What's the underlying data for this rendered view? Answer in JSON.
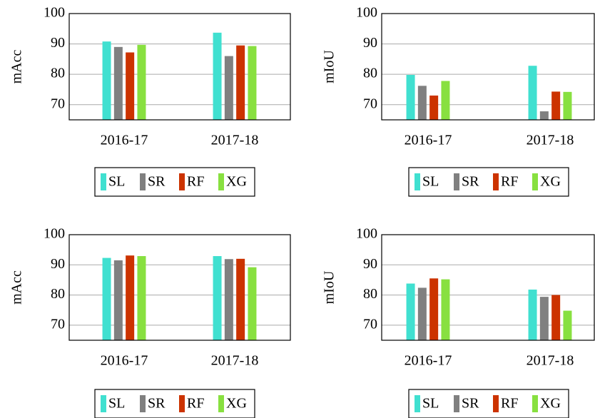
{
  "chart_data": [
    {
      "type": "bar",
      "ylabel": "mAcc",
      "categories": [
        "2016-17",
        "2017-18"
      ],
      "series": [
        {
          "name": "SL",
          "color": "#40e0d0",
          "values": [
            90.8,
            93.7
          ]
        },
        {
          "name": "SR",
          "color": "#808080",
          "values": [
            89.0,
            86.0
          ]
        },
        {
          "name": "RF",
          "color": "#cc3300",
          "values": [
            87.2,
            89.5
          ]
        },
        {
          "name": "XG",
          "color": "#88e040",
          "values": [
            89.7,
            89.3
          ]
        }
      ],
      "ylim": [
        65,
        100
      ],
      "yticks": [
        70,
        80,
        90,
        100
      ],
      "grid": true
    },
    {
      "type": "bar",
      "ylabel": "mIoU",
      "categories": [
        "2016-17",
        "2017-18"
      ],
      "series": [
        {
          "name": "SL",
          "color": "#40e0d0",
          "values": [
            79.8,
            82.8
          ]
        },
        {
          "name": "SR",
          "color": "#808080",
          "values": [
            76.2,
            67.8
          ]
        },
        {
          "name": "RF",
          "color": "#cc3300",
          "values": [
            73.0,
            74.3
          ]
        },
        {
          "name": "XG",
          "color": "#88e040",
          "values": [
            77.8,
            74.2
          ]
        }
      ],
      "ylim": [
        65,
        100
      ],
      "yticks": [
        70,
        80,
        90,
        100
      ],
      "grid": true
    },
    {
      "type": "bar",
      "ylabel": "mAcc",
      "categories": [
        "2016-17",
        "2017-18"
      ],
      "series": [
        {
          "name": "SL",
          "color": "#40e0d0",
          "values": [
            92.3,
            92.9
          ]
        },
        {
          "name": "SR",
          "color": "#808080",
          "values": [
            91.5,
            91.9
          ]
        },
        {
          "name": "RF",
          "color": "#cc3300",
          "values": [
            93.1,
            92.0
          ]
        },
        {
          "name": "XG",
          "color": "#88e040",
          "values": [
            92.9,
            89.2
          ]
        }
      ],
      "ylim": [
        65,
        100
      ],
      "yticks": [
        70,
        80,
        90,
        100
      ],
      "grid": true
    },
    {
      "type": "bar",
      "ylabel": "mIoU",
      "categories": [
        "2016-17",
        "2017-18"
      ],
      "series": [
        {
          "name": "SL",
          "color": "#40e0d0",
          "values": [
            83.8,
            81.8
          ]
        },
        {
          "name": "SR",
          "color": "#808080",
          "values": [
            82.4,
            79.4
          ]
        },
        {
          "name": "RF",
          "color": "#cc3300",
          "values": [
            85.5,
            80.0
          ]
        },
        {
          "name": "XG",
          "color": "#88e040",
          "values": [
            85.2,
            74.8
          ]
        }
      ],
      "ylim": [
        65,
        100
      ],
      "yticks": [
        70,
        80,
        90,
        100
      ],
      "grid": true
    }
  ]
}
